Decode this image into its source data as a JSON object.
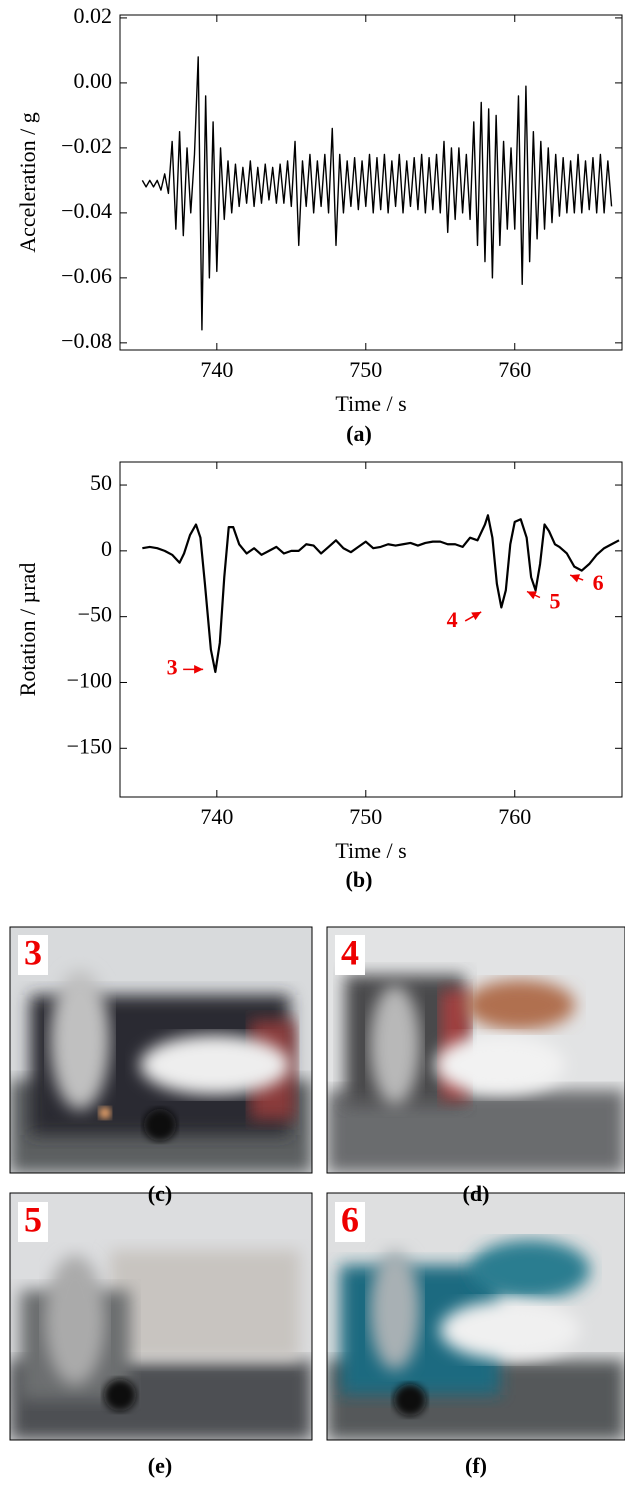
{
  "chart_data": [
    {
      "type": "line",
      "xlabel": "Time / s",
      "ylabel": "Acceleration / g",
      "caption": "(a)",
      "xlim": [
        733.5,
        767.2
      ],
      "xticks": [
        740,
        750,
        760
      ],
      "ylim": [
        -0.0822,
        0.0209
      ],
      "yticks": [
        0.02,
        {
          "value": 0,
          "label": "0.00"
        },
        {
          "value": -0.02,
          "label": "−0.02"
        },
        {
          "value": -0.04,
          "label": "−0.04"
        },
        {
          "value": -0.06,
          "label": "−0.06"
        },
        {
          "value": -0.08,
          "label": "−0.08"
        }
      ],
      "color": "#000000",
      "x": [
        735,
        735.25,
        735.5,
        735.75,
        736,
        736.25,
        736.5,
        736.75,
        737,
        737.25,
        737.5,
        737.75,
        738,
        738.25,
        738.5,
        738.75,
        739,
        739.25,
        739.5,
        739.75,
        740,
        740.25,
        740.5,
        740.75,
        741,
        741.25,
        741.5,
        741.75,
        742,
        742.25,
        742.5,
        742.75,
        743,
        743.25,
        743.5,
        743.75,
        744,
        744.25,
        744.5,
        744.75,
        745,
        745.25,
        745.5,
        745.75,
        746,
        746.25,
        746.5,
        746.75,
        747,
        747.25,
        747.5,
        747.75,
        748,
        748.25,
        748.5,
        748.75,
        749,
        749.25,
        749.5,
        749.75,
        750,
        750.25,
        750.5,
        750.75,
        751,
        751.25,
        751.5,
        751.75,
        752,
        752.25,
        752.5,
        752.75,
        753,
        753.25,
        753.5,
        753.75,
        754,
        754.25,
        754.5,
        754.75,
        755,
        755.25,
        755.5,
        755.75,
        756,
        756.25,
        756.5,
        756.75,
        757,
        757.25,
        757.5,
        757.75,
        758,
        758.25,
        758.5,
        758.75,
        759,
        759.25,
        759.5,
        759.75,
        760,
        760.25,
        760.5,
        760.75,
        761,
        761.25,
        761.5,
        761.75,
        762,
        762.25,
        762.5,
        762.75,
        763,
        763.25,
        763.5,
        763.75,
        764,
        764.25,
        764.5,
        764.75,
        765,
        765.25,
        765.5,
        765.75,
        766,
        766.25,
        766.5
      ],
      "values": [
        -0.03,
        -0.032,
        -0.03,
        -0.032,
        -0.03,
        -0.033,
        -0.028,
        -0.034,
        -0.018,
        -0.045,
        -0.015,
        -0.047,
        -0.02,
        -0.04,
        -0.022,
        0.008,
        -0.076,
        -0.004,
        -0.06,
        -0.012,
        -0.058,
        -0.02,
        -0.042,
        -0.024,
        -0.04,
        -0.025,
        -0.038,
        -0.026,
        -0.037,
        -0.024,
        -0.038,
        -0.026,
        -0.037,
        -0.025,
        -0.036,
        -0.026,
        -0.037,
        -0.025,
        -0.037,
        -0.024,
        -0.038,
        -0.018,
        -0.05,
        -0.024,
        -0.038,
        -0.022,
        -0.04,
        -0.024,
        -0.038,
        -0.022,
        -0.04,
        -0.014,
        -0.05,
        -0.022,
        -0.04,
        -0.024,
        -0.038,
        -0.023,
        -0.039,
        -0.024,
        -0.038,
        -0.022,
        -0.04,
        -0.023,
        -0.039,
        -0.022,
        -0.04,
        -0.024,
        -0.038,
        -0.022,
        -0.04,
        -0.024,
        -0.038,
        -0.023,
        -0.039,
        -0.022,
        -0.04,
        -0.023,
        -0.039,
        -0.022,
        -0.04,
        -0.018,
        -0.046,
        -0.02,
        -0.042,
        -0.02,
        -0.04,
        -0.022,
        -0.042,
        -0.012,
        -0.05,
        -0.006,
        -0.055,
        -0.008,
        -0.06,
        -0.01,
        -0.05,
        -0.018,
        -0.045,
        -0.02,
        -0.045,
        -0.004,
        -0.062,
        -0.001,
        -0.055,
        -0.015,
        -0.048,
        -0.018,
        -0.045,
        -0.02,
        -0.043,
        -0.022,
        -0.041,
        -0.023,
        -0.04,
        -0.024,
        -0.04,
        -0.022,
        -0.04,
        -0.024,
        -0.039,
        -0.023,
        -0.04,
        -0.022,
        -0.04,
        -0.024,
        -0.038
      ]
    },
    {
      "type": "line",
      "xlabel": "Time / s",
      "ylabel": "Rotation / µrad",
      "caption": "(b)",
      "xlim": [
        733.5,
        767.2
      ],
      "xticks": [
        740,
        750,
        760
      ],
      "ylim": [
        -187,
        67.5
      ],
      "yticks": [
        50,
        0,
        {
          "value": -50,
          "label": "−50"
        },
        {
          "value": -100,
          "label": "−100"
        },
        {
          "value": -150,
          "label": "−150"
        }
      ],
      "color": "#000000",
      "x": [
        735,
        735.5,
        736,
        736.5,
        737,
        737.5,
        737.8,
        738.2,
        738.6,
        738.9,
        739.2,
        739.6,
        739.9,
        740.2,
        740.5,
        740.8,
        741.1,
        741.5,
        742,
        742.5,
        743,
        743.5,
        744,
        744.5,
        745,
        745.5,
        746,
        746.5,
        747,
        747.5,
        748,
        748.5,
        749,
        749.5,
        750,
        750.5,
        751,
        751.5,
        752,
        752.5,
        753,
        753.5,
        754,
        754.5,
        755,
        755.5,
        756,
        756.5,
        757,
        757.5,
        758,
        758.2,
        758.5,
        758.8,
        759.1,
        759.4,
        759.7,
        760,
        760.4,
        760.8,
        761.1,
        761.4,
        761.7,
        762,
        762.3,
        762.7,
        763,
        763.5,
        764,
        764.5,
        765,
        765.5,
        766,
        766.5,
        767
      ],
      "values": [
        2,
        3,
        2,
        0,
        -3,
        -9,
        -2,
        12,
        20,
        10,
        -25,
        -75,
        -92,
        -70,
        -20,
        18,
        18,
        5,
        -2,
        2,
        -3,
        0,
        3,
        -2,
        0,
        0,
        5,
        4,
        -2,
        3,
        8,
        2,
        -1,
        3,
        7,
        2,
        3,
        5,
        4,
        5,
        6,
        4,
        6,
        7,
        7,
        5,
        5,
        3,
        10,
        8,
        20,
        27,
        10,
        -25,
        -43,
        -30,
        5,
        22,
        24,
        10,
        -20,
        -30,
        -10,
        20,
        15,
        5,
        3,
        -2,
        -12,
        -15,
        -10,
        -3,
        2,
        5,
        8
      ],
      "annotations": [
        {
          "text": "3",
          "x": 737.0,
          "y": -90,
          "color": "#ee0000"
        },
        {
          "text": "4",
          "x": 755.8,
          "y": -54,
          "color": "#ee0000"
        },
        {
          "text": "5",
          "x": 762.7,
          "y": -40,
          "color": "#ee0000"
        },
        {
          "text": "6",
          "x": 765.6,
          "y": -26,
          "color": "#ee0000"
        }
      ]
    }
  ],
  "photos": [
    {
      "number": "3",
      "caption": "(c)"
    },
    {
      "number": "4",
      "caption": "(d)"
    },
    {
      "number": "5",
      "caption": "(e)"
    },
    {
      "number": "6",
      "caption": "(f)"
    }
  ]
}
